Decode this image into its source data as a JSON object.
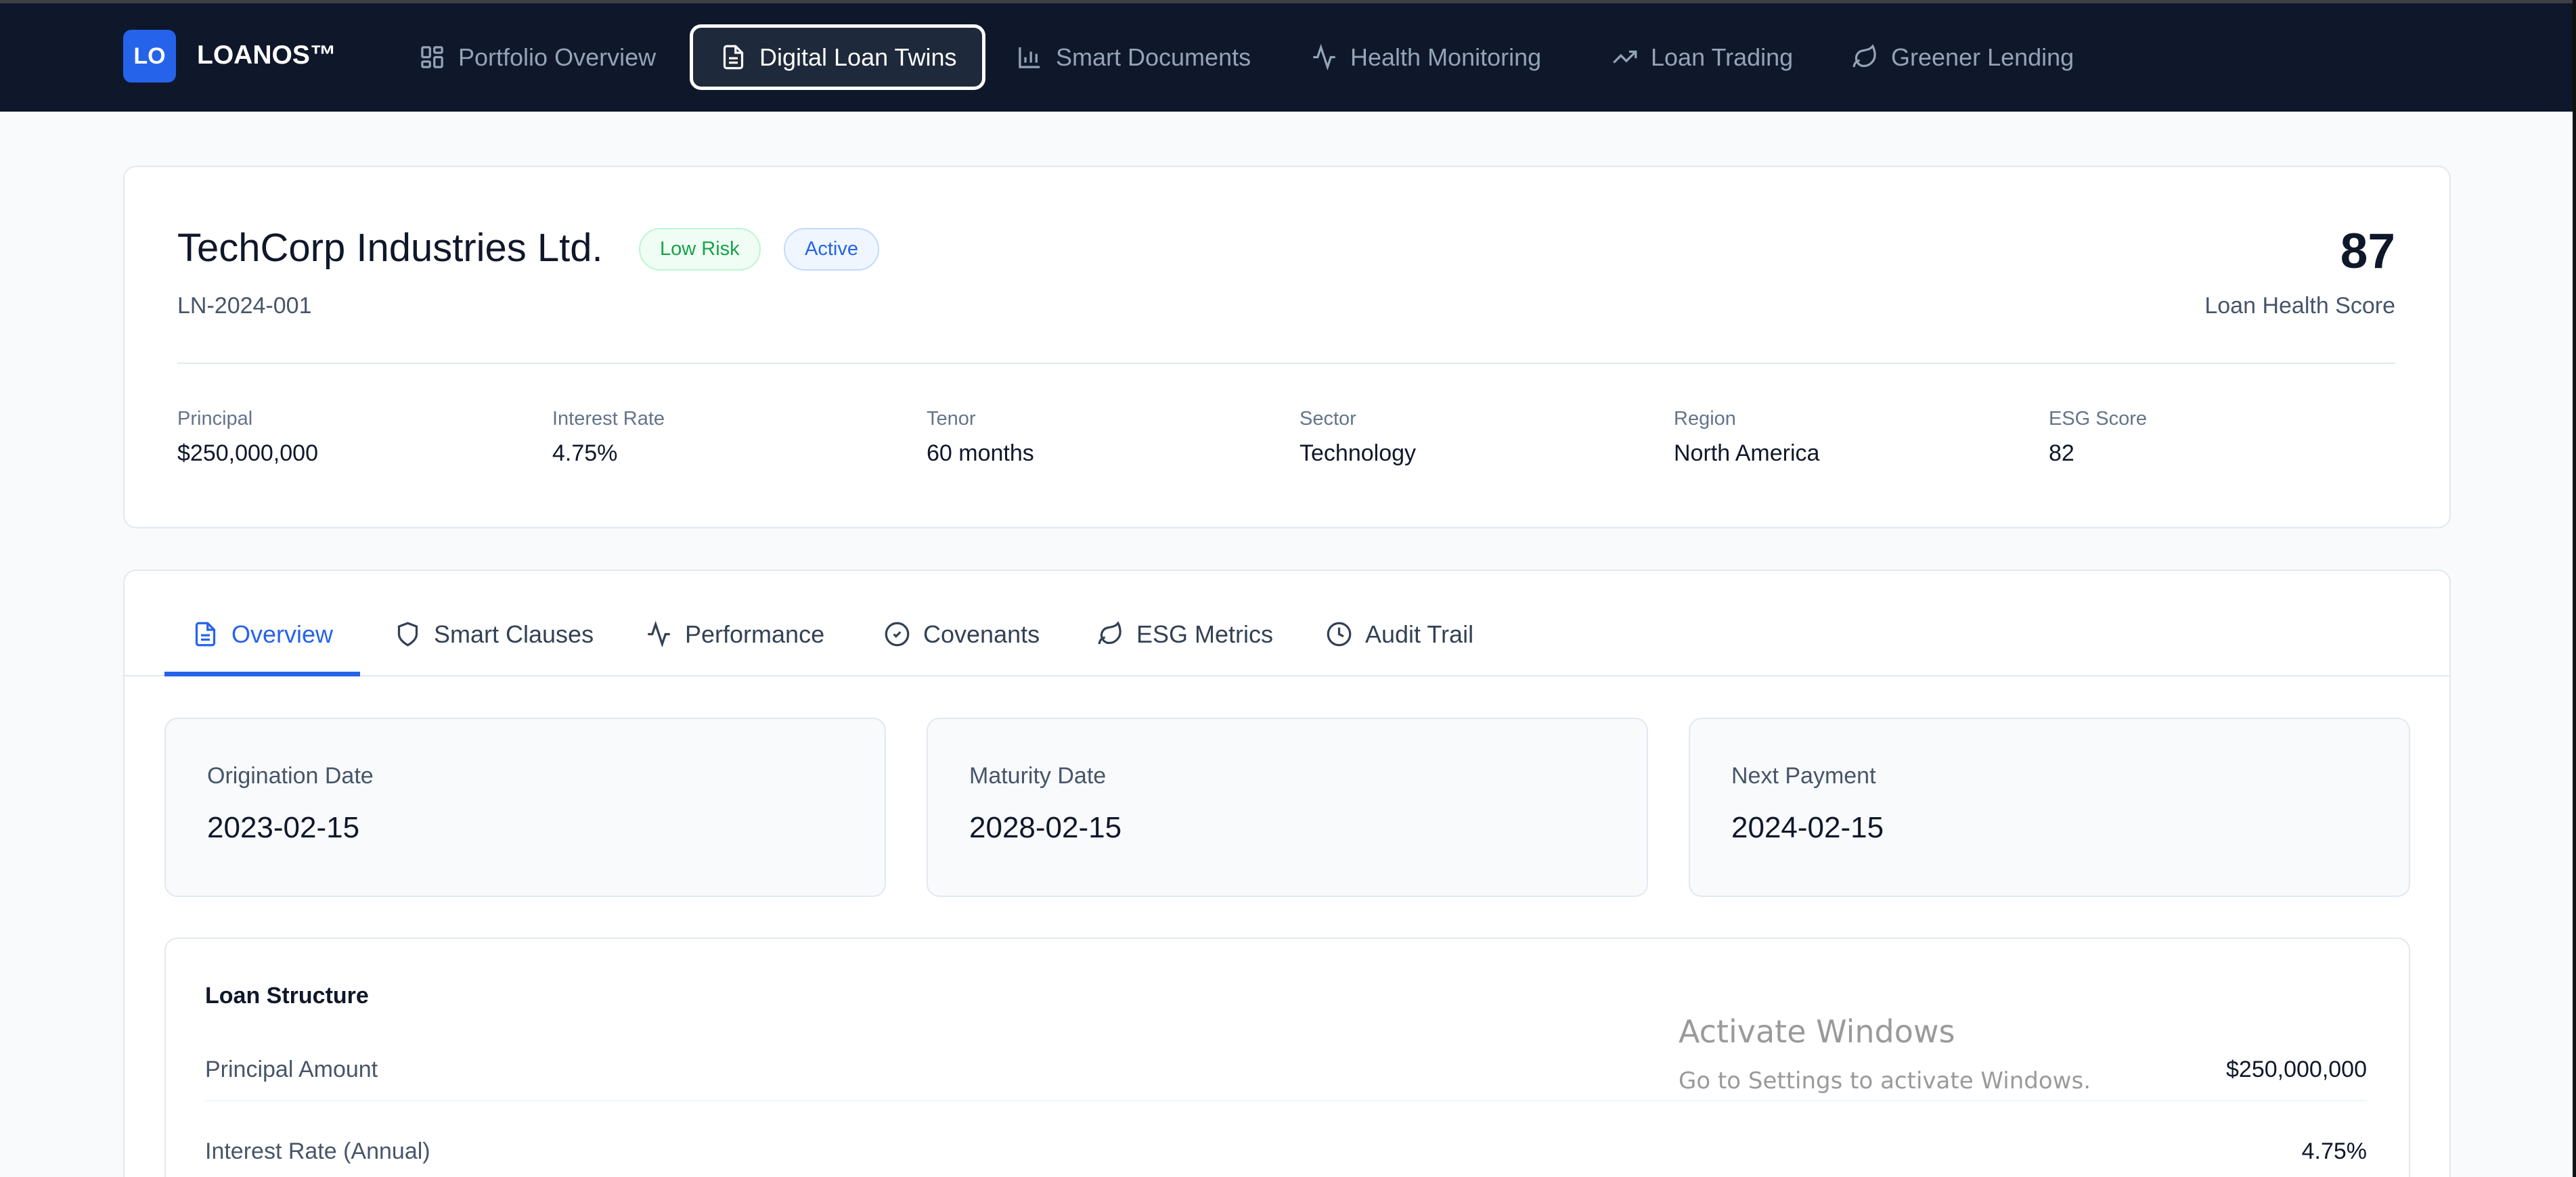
{
  "nav": {
    "logo": "LO",
    "brand": "LOANOS™",
    "items": [
      {
        "label": "Portfolio Overview",
        "icon": "grid-icon"
      },
      {
        "label": "Digital Loan Twins",
        "icon": "document-icon",
        "active": true
      },
      {
        "label": "Smart Documents",
        "icon": "bar-chart-icon"
      },
      {
        "label": "Health Monitoring",
        "icon": "activity-icon"
      },
      {
        "label": "Loan Trading",
        "icon": "trending-up-icon"
      },
      {
        "label": "Greener Lending",
        "icon": "leaf-icon"
      }
    ]
  },
  "loan": {
    "name": "TechCorp Industries Ltd.",
    "id": "LN-2024-001",
    "badges": {
      "risk": "Low Risk",
      "status": "Active"
    },
    "health_score": "87",
    "health_score_label": "Loan Health Score",
    "stats": [
      {
        "label": "Principal",
        "value": "$250,000,000"
      },
      {
        "label": "Interest Rate",
        "value": "4.75%"
      },
      {
        "label": "Tenor",
        "value": "60 months"
      },
      {
        "label": "Sector",
        "value": "Technology"
      },
      {
        "label": "Region",
        "value": "North America"
      },
      {
        "label": "ESG Score",
        "value": "82"
      }
    ]
  },
  "tabs": [
    {
      "label": "Overview",
      "icon": "document-icon",
      "active": true
    },
    {
      "label": "Smart Clauses",
      "icon": "shield-icon"
    },
    {
      "label": "Performance",
      "icon": "activity-icon"
    },
    {
      "label": "Covenants",
      "icon": "check-circle-icon"
    },
    {
      "label": "ESG Metrics",
      "icon": "leaf-icon"
    },
    {
      "label": "Audit Trail",
      "icon": "clock-icon"
    }
  ],
  "dates": [
    {
      "label": "Origination Date",
      "value": "2023-02-15"
    },
    {
      "label": "Maturity Date",
      "value": "2028-02-15"
    },
    {
      "label": "Next Payment",
      "value": "2024-02-15"
    }
  ],
  "structure": {
    "title": "Loan Structure",
    "rows": [
      {
        "label": "Principal Amount",
        "value": "$250,000,000"
      },
      {
        "label": "Interest Rate (Annual)",
        "value": "4.75%"
      }
    ]
  },
  "watermark": {
    "title": "Activate Windows",
    "subtitle": "Go to Settings to activate Windows."
  },
  "colors": {
    "nav_bg": "#0f172a",
    "accent": "#2563eb",
    "low_risk": "#16a34a",
    "page_bg": "#f8fafc"
  }
}
